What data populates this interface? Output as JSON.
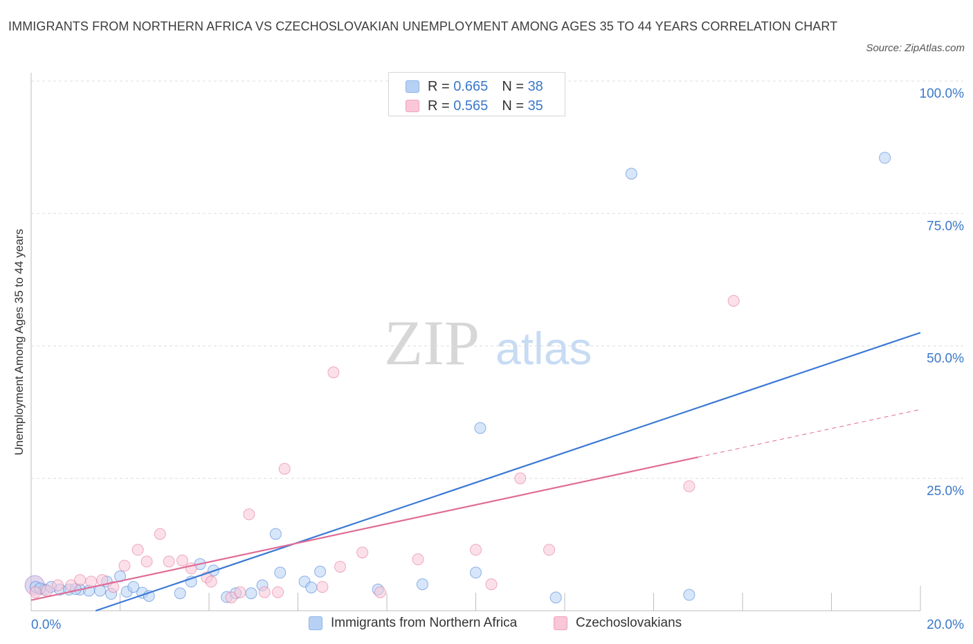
{
  "title": "IMMIGRANTS FROM NORTHERN AFRICA VS CZECHOSLOVAKIAN UNEMPLOYMENT AMONG AGES 35 TO 44 YEARS CORRELATION CHART",
  "source": "Source: ZipAtlas.com",
  "watermark": {
    "zip": "ZIP",
    "atlas": "atlas"
  },
  "legend": {
    "rows": [
      {
        "r_label": "R = ",
        "r_value": "0.665",
        "n_label": "N = ",
        "n_value": "38",
        "color": "#a9c8f3"
      },
      {
        "r_label": "R = ",
        "r_value": "0.565",
        "n_label": "N = ",
        "n_value": "35",
        "color": "#f6bccd"
      }
    ]
  },
  "chart_data": {
    "type": "scatter",
    "ylabel": "Unemployment Among Ages 35 to 44 years",
    "xlim": [
      0,
      20
    ],
    "ylim": [
      0,
      100
    ],
    "x_tick_labels": [
      "0.0%",
      "20.0%"
    ],
    "y_tick_labels": [
      "25.0%",
      "50.0%",
      "75.0%",
      "100.0%"
    ],
    "y_ticks": [
      25,
      50,
      75,
      100
    ],
    "grid": true,
    "legend_placement": "bottom",
    "series": [
      {
        "name": "Immigrants from Northern Africa",
        "color": "#3a78d4",
        "fill": "#b7d1f4",
        "points": [
          [
            0.1,
            4.5
          ],
          [
            0.3,
            4.0
          ],
          [
            0.45,
            4.5
          ],
          [
            0.65,
            4.0
          ],
          [
            0.85,
            4.0
          ],
          [
            1.1,
            4.0
          ],
          [
            1.3,
            3.8
          ],
          [
            1.55,
            3.8
          ],
          [
            1.7,
            5.5
          ],
          [
            1.8,
            3.2
          ],
          [
            2.0,
            6.5
          ],
          [
            2.15,
            3.6
          ],
          [
            2.3,
            4.5
          ],
          [
            2.5,
            3.4
          ],
          [
            2.65,
            2.8
          ],
          [
            3.35,
            3.3
          ],
          [
            3.6,
            5.5
          ],
          [
            3.8,
            8.8
          ],
          [
            4.1,
            7.6
          ],
          [
            4.4,
            2.6
          ],
          [
            4.6,
            3.3
          ],
          [
            4.95,
            3.3
          ],
          [
            5.2,
            4.8
          ],
          [
            5.5,
            14.5
          ],
          [
            5.6,
            7.2
          ],
          [
            6.15,
            5.5
          ],
          [
            6.3,
            4.4
          ],
          [
            6.5,
            7.4
          ],
          [
            7.8,
            4.0
          ],
          [
            8.8,
            5.0
          ],
          [
            10.0,
            7.2
          ],
          [
            10.1,
            34.5
          ],
          [
            11.8,
            2.5
          ],
          [
            13.5,
            82.5
          ],
          [
            14.8,
            3.0
          ],
          [
            19.2,
            85.5
          ],
          [
            0.2,
            4.2
          ],
          [
            1.0,
            4.1
          ]
        ],
        "trend": {
          "x0": 1.45,
          "y0": 0.0,
          "x1": 20.0,
          "y1": 52.5
        }
      },
      {
        "name": "Czechoslovakians",
        "color": "#e06b96",
        "fill": "#f9c7d7",
        "points": [
          [
            0.1,
            3.5
          ],
          [
            0.35,
            3.8
          ],
          [
            0.6,
            4.8
          ],
          [
            0.9,
            4.8
          ],
          [
            1.1,
            5.8
          ],
          [
            1.35,
            5.5
          ],
          [
            1.6,
            5.8
          ],
          [
            1.85,
            4.5
          ],
          [
            2.1,
            8.5
          ],
          [
            2.4,
            11.5
          ],
          [
            2.6,
            9.3
          ],
          [
            2.9,
            14.5
          ],
          [
            3.1,
            9.3
          ],
          [
            3.4,
            9.5
          ],
          [
            3.6,
            8.0
          ],
          [
            3.95,
            6.3
          ],
          [
            4.05,
            5.5
          ],
          [
            4.5,
            2.5
          ],
          [
            4.7,
            3.5
          ],
          [
            4.9,
            18.2
          ],
          [
            5.25,
            3.5
          ],
          [
            5.55,
            3.5
          ],
          [
            5.7,
            26.8
          ],
          [
            6.55,
            4.5
          ],
          [
            6.8,
            45.0
          ],
          [
            6.95,
            8.3
          ],
          [
            7.45,
            11.0
          ],
          [
            7.85,
            3.5
          ],
          [
            8.7,
            9.7
          ],
          [
            10.0,
            11.5
          ],
          [
            10.35,
            5.0
          ],
          [
            11.0,
            25.0
          ],
          [
            11.65,
            11.5
          ],
          [
            14.8,
            23.5
          ],
          [
            15.8,
            58.5
          ]
        ],
        "trend": {
          "x0": 0.0,
          "y0": 2.0,
          "x1": 15.0,
          "y1": 29.0
        },
        "trend_dashed": {
          "x0": 15.0,
          "y0": 29.0,
          "x1": 20.0,
          "y1": 38.0
        }
      }
    ]
  }
}
